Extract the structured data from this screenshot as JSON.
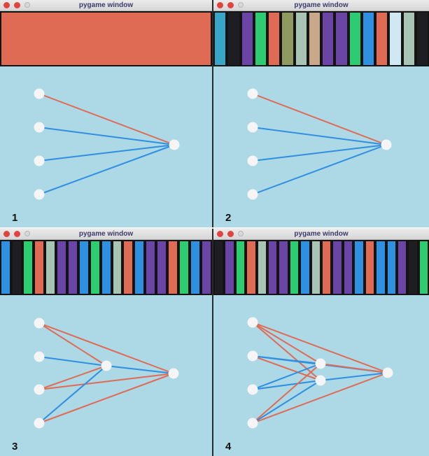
{
  "colors": {
    "background": "#add8e6",
    "separator": "#141414",
    "node": "#f5f5f5",
    "edge_positive": "#e06b55",
    "edge_negative": "#2f8fe0",
    "traffic_close": "#e0443e",
    "traffic_min": "#e0443e"
  },
  "palette": {
    "red": "#e06b55",
    "black": "#1e1e22",
    "purple": "#6a45a6",
    "green": "#2ecc71",
    "sage": "#a7c4b5",
    "olive": "#8e9a60",
    "blue": "#2f8fe0",
    "lightblue": "#cfe8f2",
    "teal": "#3aa6c7",
    "tan": "#c9a88a"
  },
  "windows": [
    {
      "title": "pygame window",
      "label": "1",
      "bars": [
        "red"
      ],
      "edges": [
        {
          "from": 0,
          "to": 4,
          "type": "positive"
        },
        {
          "from": 1,
          "to": 4,
          "type": "negative"
        },
        {
          "from": 2,
          "to": 4,
          "type": "negative"
        },
        {
          "from": 3,
          "to": 4,
          "type": "negative"
        }
      ]
    },
    {
      "title": "pygame window",
      "label": "2",
      "bars": [
        "teal",
        "black",
        "purple",
        "green",
        "red",
        "olive",
        "sage",
        "tan",
        "purple",
        "purple",
        "green",
        "blue",
        "red",
        "lightblue",
        "sage",
        "black"
      ],
      "edges": [
        {
          "from": 0,
          "to": 4,
          "type": "positive"
        },
        {
          "from": 1,
          "to": 4,
          "type": "negative"
        },
        {
          "from": 2,
          "to": 4,
          "type": "negative"
        },
        {
          "from": 3,
          "to": 4,
          "type": "negative"
        }
      ]
    },
    {
      "title": "pygame window",
      "label": "3",
      "bars": [
        "blue",
        "black",
        "green",
        "red",
        "sage",
        "purple",
        "purple",
        "blue",
        "green",
        "blue",
        "sage",
        "red",
        "blue",
        "purple",
        "purple",
        "red",
        "green",
        "blue",
        "purple"
      ],
      "edges": [
        {
          "from": 0,
          "to": 4,
          "type": "positive"
        },
        {
          "from": 0,
          "to": 5,
          "type": "positive"
        },
        {
          "from": 1,
          "to": 4,
          "type": "negative"
        },
        {
          "from": 2,
          "to": 4,
          "type": "positive"
        },
        {
          "from": 2,
          "to": 5,
          "type": "positive"
        },
        {
          "from": 3,
          "to": 4,
          "type": "negative"
        },
        {
          "from": 3,
          "to": 5,
          "type": "positive"
        },
        {
          "from": 4,
          "to": 5,
          "type": "negative"
        }
      ]
    },
    {
      "title": "pygame window",
      "label": "4",
      "bars": [
        "black",
        "purple",
        "green",
        "red",
        "sage",
        "purple",
        "purple",
        "green",
        "blue",
        "sage",
        "red",
        "purple",
        "purple",
        "blue",
        "red",
        "blue",
        "blue",
        "purple",
        "black",
        "green"
      ],
      "edges": [
        {
          "from": 0,
          "to": 4,
          "type": "positive"
        },
        {
          "from": 0,
          "to": 5,
          "type": "positive"
        },
        {
          "from": 0,
          "to": 6,
          "type": "positive"
        },
        {
          "from": 1,
          "to": 4,
          "type": "negative"
        },
        {
          "from": 1,
          "to": 5,
          "type": "positive"
        },
        {
          "from": 1,
          "to": 6,
          "type": "negative"
        },
        {
          "from": 2,
          "to": 4,
          "type": "negative"
        },
        {
          "from": 2,
          "to": 5,
          "type": "negative"
        },
        {
          "from": 3,
          "to": 4,
          "type": "positive"
        },
        {
          "from": 3,
          "to": 5,
          "type": "negative"
        },
        {
          "from": 3,
          "to": 6,
          "type": "positive"
        },
        {
          "from": 4,
          "to": 6,
          "type": "positive"
        },
        {
          "from": 5,
          "to": 6,
          "type": "negative"
        }
      ]
    }
  ]
}
